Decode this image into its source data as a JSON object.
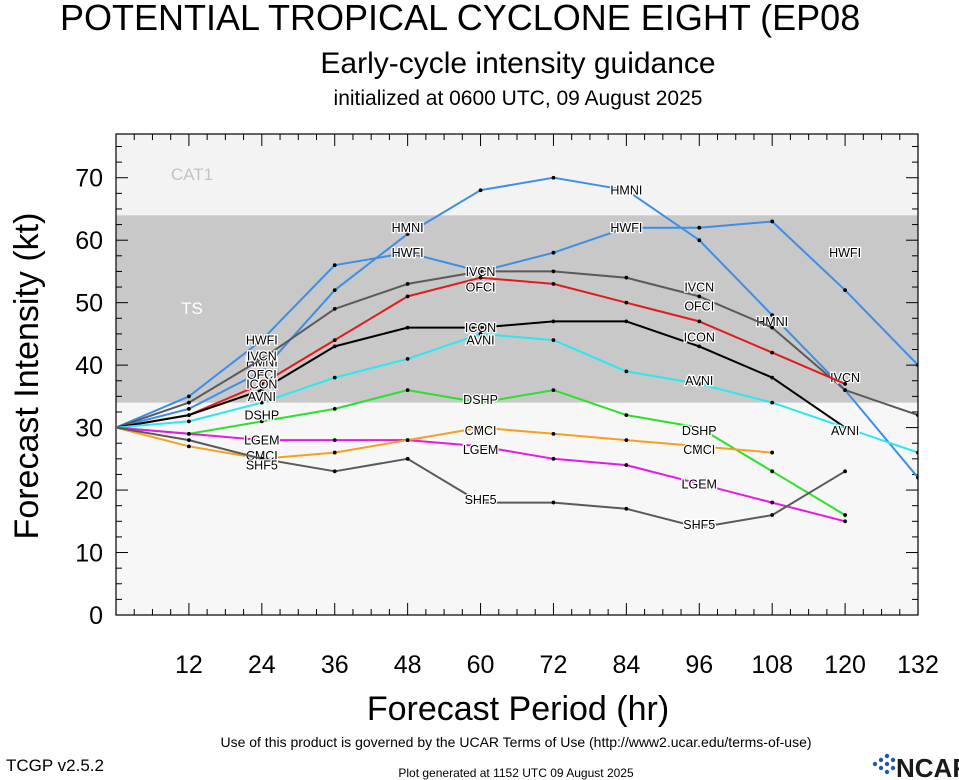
{
  "title": "POTENTIAL TROPICAL CYCLONE EIGHT (EP08",
  "subtitle": "Early-cycle intensity guidance",
  "init_line": "initialized at 0600 UTC, 09 August 2025",
  "footer": {
    "terms": "Use of this product is governed by the UCAR Terms of Use (http://www2.ucar.edu/terms-of-use)",
    "version": "TCGP v2.5.2",
    "generated": "Plot generated at 1152 UTC   09 August 2025",
    "logo_text": "NCAR"
  },
  "chart_data": {
    "type": "line",
    "xlabel": "Forecast Period (hr)",
    "ylabel": "Forecast Intensity (kt)",
    "xlim": [
      0,
      132
    ],
    "ylim": [
      0,
      77
    ],
    "xticks": [
      12,
      24,
      36,
      48,
      60,
      72,
      84,
      96,
      108,
      120,
      132
    ],
    "yticks": [
      0,
      10,
      20,
      30,
      40,
      50,
      60,
      70
    ],
    "grid": false,
    "bands": [
      {
        "label": "TS",
        "from": 34,
        "to": 64,
        "color": "#c8c8c8"
      },
      {
        "label": "CAT1",
        "from": 64,
        "to": 77,
        "color": "#f3f3f3"
      }
    ],
    "series": [
      {
        "name": "HWFI",
        "color": "#3c8ee6",
        "points": [
          [
            0,
            30
          ],
          [
            12,
            35
          ],
          [
            24,
            44
          ],
          [
            36,
            56
          ],
          [
            48,
            58
          ],
          [
            60,
            55
          ],
          [
            72,
            58
          ],
          [
            84,
            62
          ],
          [
            96,
            62
          ],
          [
            108,
            63
          ],
          [
            120,
            52
          ],
          [
            132,
            40
          ]
        ],
        "labels": [
          [
            24,
            44
          ],
          [
            48,
            58
          ],
          [
            84,
            62
          ],
          [
            120,
            58
          ]
        ]
      },
      {
        "name": "HMNI",
        "color": "#3c8ee6",
        "points": [
          [
            0,
            30
          ],
          [
            12,
            33
          ],
          [
            24,
            39
          ],
          [
            36,
            52
          ],
          [
            48,
            61
          ],
          [
            60,
            68
          ],
          [
            72,
            70
          ],
          [
            84,
            68
          ],
          [
            96,
            60
          ],
          [
            108,
            48
          ],
          [
            120,
            36
          ],
          [
            132,
            22
          ]
        ],
        "labels": [
          [
            24,
            40.5
          ],
          [
            48,
            62
          ],
          [
            84,
            68
          ],
          [
            108,
            47
          ]
        ]
      },
      {
        "name": "IVCN",
        "color": "#5a5a5a",
        "points": [
          [
            0,
            30
          ],
          [
            12,
            34
          ],
          [
            24,
            41
          ],
          [
            36,
            49
          ],
          [
            48,
            53
          ],
          [
            60,
            55
          ],
          [
            72,
            55
          ],
          [
            84,
            54
          ],
          [
            96,
            51
          ],
          [
            108,
            46
          ],
          [
            120,
            36
          ],
          [
            132,
            32
          ]
        ],
        "labels": [
          [
            24,
            41.5
          ],
          [
            60,
            55
          ],
          [
            96,
            52.5
          ],
          [
            120,
            38
          ]
        ]
      },
      {
        "name": "OFCI",
        "color": "#e01b1b",
        "points": [
          [
            0,
            30
          ],
          [
            12,
            32
          ],
          [
            24,
            37
          ],
          [
            36,
            44
          ],
          [
            48,
            51
          ],
          [
            60,
            54
          ],
          [
            72,
            53
          ],
          [
            84,
            50
          ],
          [
            96,
            47
          ],
          [
            108,
            42
          ],
          [
            120,
            37
          ]
        ],
        "labels": [
          [
            24,
            38.5
          ],
          [
            60,
            52.5
          ],
          [
            96,
            49.5
          ]
        ]
      },
      {
        "name": "ICON",
        "color": "#000000",
        "points": [
          [
            0,
            30
          ],
          [
            12,
            32
          ],
          [
            24,
            36
          ],
          [
            36,
            43
          ],
          [
            48,
            46
          ],
          [
            60,
            46
          ],
          [
            72,
            47
          ],
          [
            84,
            47
          ],
          [
            96,
            43
          ],
          [
            108,
            38
          ],
          [
            120,
            30
          ]
        ],
        "labels": [
          [
            24,
            37
          ],
          [
            60,
            46
          ],
          [
            96,
            44.5
          ]
        ]
      },
      {
        "name": "AVNI",
        "color": "#2ce6f0",
        "points": [
          [
            0,
            30
          ],
          [
            12,
            31
          ],
          [
            24,
            34
          ],
          [
            36,
            38
          ],
          [
            48,
            41
          ],
          [
            60,
            45
          ],
          [
            72,
            44
          ],
          [
            84,
            39
          ],
          [
            96,
            37
          ],
          [
            108,
            34
          ],
          [
            120,
            30
          ],
          [
            132,
            26
          ]
        ],
        "labels": [
          [
            24,
            35
          ],
          [
            60,
            44
          ],
          [
            96,
            37.5
          ],
          [
            120,
            29.5
          ]
        ]
      },
      {
        "name": "DSHP",
        "color": "#2ee02e",
        "points": [
          [
            0,
            30
          ],
          [
            12,
            29
          ],
          [
            24,
            31
          ],
          [
            36,
            33
          ],
          [
            48,
            36
          ],
          [
            60,
            34
          ],
          [
            72,
            36
          ],
          [
            84,
            32
          ],
          [
            96,
            30
          ],
          [
            108,
            23
          ],
          [
            120,
            16
          ]
        ],
        "labels": [
          [
            24,
            32
          ],
          [
            60,
            34.5
          ],
          [
            96,
            29.5
          ]
        ]
      },
      {
        "name": "LGEM",
        "color": "#e619e6",
        "points": [
          [
            0,
            30
          ],
          [
            12,
            29
          ],
          [
            24,
            28
          ],
          [
            36,
            28
          ],
          [
            48,
            28
          ],
          [
            60,
            27
          ],
          [
            72,
            25
          ],
          [
            84,
            24
          ],
          [
            96,
            21
          ],
          [
            108,
            18
          ],
          [
            120,
            15
          ]
        ],
        "labels": [
          [
            24,
            28
          ],
          [
            60,
            26.5
          ],
          [
            96,
            21
          ]
        ]
      },
      {
        "name": "CMCI",
        "color": "#f5a01e",
        "points": [
          [
            0,
            30
          ],
          [
            12,
            27
          ],
          [
            24,
            25
          ],
          [
            36,
            26
          ],
          [
            48,
            28
          ],
          [
            60,
            30
          ],
          [
            72,
            29
          ],
          [
            84,
            28
          ],
          [
            96,
            27
          ],
          [
            108,
            26
          ]
        ],
        "labels": [
          [
            24,
            25.5
          ],
          [
            60,
            29.5
          ],
          [
            96,
            26.5
          ]
        ]
      },
      {
        "name": "SHF5",
        "color": "#5a5a5a",
        "points": [
          [
            0,
            30
          ],
          [
            12,
            28
          ],
          [
            24,
            25
          ],
          [
            36,
            23
          ],
          [
            48,
            25
          ],
          [
            60,
            18
          ],
          [
            72,
            18
          ],
          [
            84,
            17
          ],
          [
            96,
            14
          ],
          [
            108,
            16
          ],
          [
            120,
            23
          ]
        ],
        "labels": [
          [
            24,
            24
          ],
          [
            60,
            18.5
          ],
          [
            96,
            14.5
          ]
        ]
      }
    ]
  }
}
